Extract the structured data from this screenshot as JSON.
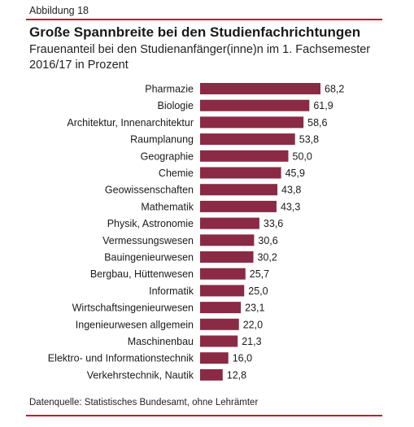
{
  "figure_label": "Abbildung 18",
  "title": "Große Spannbreite bei den Studienfachrichtungen",
  "subtitle": "Frauenanteil bei den Studienanfänger(inne)n im 1. Fachsemester 2016/17 in Prozent",
  "source": "Datenquelle: Statistisches Bundesamt, ohne Lehrämter",
  "colors": {
    "bar": "#8b2a44",
    "rule": "#c8102e"
  },
  "chart_data": {
    "type": "bar",
    "orientation": "horizontal",
    "categories": [
      "Pharmazie",
      "Biologie",
      "Architektur, Innenarchitektur",
      "Raumplanung",
      "Geographie",
      "Chemie",
      "Geowissenschaften",
      "Mathematik",
      "Physik, Astronomie",
      "Vermessungswesen",
      "Bauingenieurwesen",
      "Bergbau, Hüttenwesen",
      "Informatik",
      "Wirtschaftsingenieurwesen",
      "Ingenieurwesen allgemein",
      "Maschinenbau",
      "Elektro- und Informationstechnik",
      "Verkehrstechnik, Nautik"
    ],
    "values": [
      68.2,
      61.9,
      58.6,
      53.8,
      50.0,
      45.9,
      43.8,
      43.3,
      33.6,
      30.6,
      30.2,
      25.7,
      25.0,
      23.1,
      22.0,
      21.3,
      16.0,
      12.8
    ],
    "value_labels": [
      "68,2",
      "61,9",
      "58,6",
      "53,8",
      "50,0",
      "45,9",
      "43,8",
      "43,3",
      "33,6",
      "30,6",
      "30,2",
      "25,7",
      "25,0",
      "23,1",
      "22,0",
      "21,3",
      "16,0",
      "12,8"
    ],
    "xlim": [
      0,
      68.2
    ],
    "grid": false,
    "legend": "none"
  }
}
